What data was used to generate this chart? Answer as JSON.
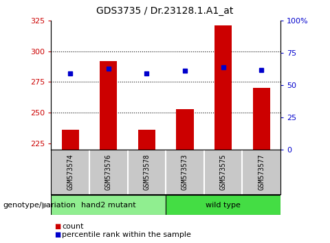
{
  "title": "GDS3735 / Dr.23128.1.A1_at",
  "samples": [
    "GSM573574",
    "GSM573576",
    "GSM573578",
    "GSM573573",
    "GSM573575",
    "GSM573577"
  ],
  "count_values": [
    236,
    292,
    236,
    253,
    321,
    270
  ],
  "percentile_values": [
    282,
    286,
    282,
    284,
    287,
    285
  ],
  "ylim_left": [
    220,
    325
  ],
  "ylim_right": [
    0,
    100
  ],
  "yticks_left": [
    225,
    250,
    275,
    300,
    325
  ],
  "yticks_right": [
    0,
    25,
    50,
    75,
    100
  ],
  "ytick_right_labels": [
    "0",
    "25",
    "50",
    "75",
    "100%"
  ],
  "grid_lines": [
    250,
    275,
    300
  ],
  "groups": [
    {
      "label": "hand2 mutant",
      "indices": [
        0,
        1,
        2
      ],
      "color": "#90EE90"
    },
    {
      "label": "wild type",
      "indices": [
        3,
        4,
        5
      ],
      "color": "#44DD44"
    }
  ],
  "bar_color": "#CC0000",
  "dot_color": "#0000CC",
  "bar_width": 0.45,
  "plot_bg_color": "#FFFFFF",
  "tick_area_color": "#C8C8C8",
  "left_tick_color": "#CC0000",
  "right_tick_color": "#0000CC",
  "legend_items": [
    {
      "label": "count",
      "color": "#CC0000"
    },
    {
      "label": "percentile rank within the sample",
      "color": "#0000CC"
    }
  ],
  "group_label": "genotype/variation",
  "hand2_color": "#90EE90",
  "wildtype_color": "#44DD44"
}
